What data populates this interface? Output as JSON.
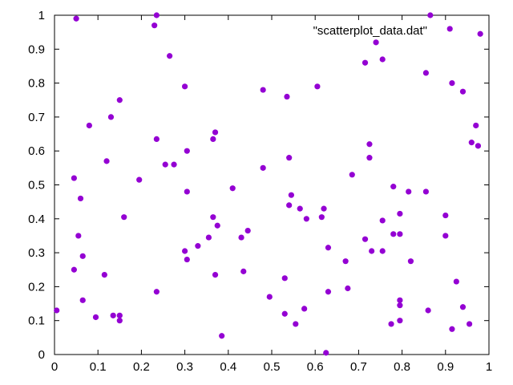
{
  "chart_data": {
    "type": "scatter",
    "title": "",
    "xlabel": "",
    "ylabel": "",
    "xlim": [
      0,
      1
    ],
    "ylim": [
      0,
      1
    ],
    "grid": false,
    "legend_position": "top-right",
    "x_ticks": [
      "0",
      "0.1",
      "0.2",
      "0.3",
      "0.4",
      "0.5",
      "0.6",
      "0.7",
      "0.8",
      "0.9",
      "1"
    ],
    "y_ticks": [
      "0",
      "0.1",
      "0.2",
      "0.3",
      "0.4",
      "0.5",
      "0.6",
      "0.7",
      "0.8",
      "0.9",
      "1"
    ],
    "series": [
      {
        "name": "\"scatterplot_data.dat\"",
        "color": "#9400d3",
        "points": [
          [
            0.05,
            0.99
          ],
          [
            0.235,
            1.0
          ],
          [
            0.23,
            0.97
          ],
          [
            0.865,
            1.0
          ],
          [
            0.91,
            0.96
          ],
          [
            0.98,
            0.945
          ],
          [
            0.265,
            0.88
          ],
          [
            0.74,
            0.92
          ],
          [
            0.715,
            0.86
          ],
          [
            0.755,
            0.87
          ],
          [
            0.855,
            0.83
          ],
          [
            0.3,
            0.79
          ],
          [
            0.48,
            0.78
          ],
          [
            0.605,
            0.79
          ],
          [
            0.915,
            0.8
          ],
          [
            0.94,
            0.775
          ],
          [
            0.15,
            0.75
          ],
          [
            0.535,
            0.76
          ],
          [
            0.13,
            0.7
          ],
          [
            0.08,
            0.675
          ],
          [
            0.97,
            0.675
          ],
          [
            0.37,
            0.655
          ],
          [
            0.235,
            0.635
          ],
          [
            0.365,
            0.635
          ],
          [
            0.725,
            0.62
          ],
          [
            0.96,
            0.625
          ],
          [
            0.975,
            0.615
          ],
          [
            0.305,
            0.6
          ],
          [
            0.54,
            0.58
          ],
          [
            0.725,
            0.58
          ],
          [
            0.12,
            0.57
          ],
          [
            0.255,
            0.56
          ],
          [
            0.275,
            0.56
          ],
          [
            0.48,
            0.55
          ],
          [
            0.045,
            0.52
          ],
          [
            0.195,
            0.515
          ],
          [
            0.685,
            0.53
          ],
          [
            0.78,
            0.495
          ],
          [
            0.305,
            0.48
          ],
          [
            0.41,
            0.49
          ],
          [
            0.815,
            0.48
          ],
          [
            0.855,
            0.48
          ],
          [
            0.06,
            0.46
          ],
          [
            0.545,
            0.47
          ],
          [
            0.54,
            0.44
          ],
          [
            0.565,
            0.43
          ],
          [
            0.62,
            0.43
          ],
          [
            0.795,
            0.415
          ],
          [
            0.9,
            0.41
          ],
          [
            0.16,
            0.405
          ],
          [
            0.365,
            0.405
          ],
          [
            0.58,
            0.4
          ],
          [
            0.615,
            0.405
          ],
          [
            0.755,
            0.395
          ],
          [
            0.375,
            0.38
          ],
          [
            0.445,
            0.365
          ],
          [
            0.055,
            0.35
          ],
          [
            0.43,
            0.345
          ],
          [
            0.355,
            0.345
          ],
          [
            0.715,
            0.34
          ],
          [
            0.78,
            0.355
          ],
          [
            0.795,
            0.355
          ],
          [
            0.9,
            0.35
          ],
          [
            0.33,
            0.32
          ],
          [
            0.63,
            0.315
          ],
          [
            0.73,
            0.305
          ],
          [
            0.755,
            0.305
          ],
          [
            0.3,
            0.305
          ],
          [
            0.065,
            0.29
          ],
          [
            0.305,
            0.28
          ],
          [
            0.67,
            0.275
          ],
          [
            0.82,
            0.275
          ],
          [
            0.045,
            0.25
          ],
          [
            0.435,
            0.245
          ],
          [
            0.115,
            0.235
          ],
          [
            0.37,
            0.235
          ],
          [
            0.53,
            0.225
          ],
          [
            0.925,
            0.215
          ],
          [
            0.675,
            0.195
          ],
          [
            0.235,
            0.185
          ],
          [
            0.63,
            0.185
          ],
          [
            0.495,
            0.17
          ],
          [
            0.065,
            0.16
          ],
          [
            0.795,
            0.16
          ],
          [
            0.795,
            0.145
          ],
          [
            0.94,
            0.14
          ],
          [
            0.575,
            0.135
          ],
          [
            0.86,
            0.13
          ],
          [
            0.005,
            0.13
          ],
          [
            0.53,
            0.12
          ],
          [
            0.135,
            0.115
          ],
          [
            0.15,
            0.115
          ],
          [
            0.095,
            0.11
          ],
          [
            0.15,
            0.1
          ],
          [
            0.795,
            0.1
          ],
          [
            0.555,
            0.09
          ],
          [
            0.775,
            0.09
          ],
          [
            0.955,
            0.09
          ],
          [
            0.915,
            0.075
          ],
          [
            0.385,
            0.055
          ],
          [
            0.625,
            0.005
          ]
        ]
      }
    ]
  }
}
